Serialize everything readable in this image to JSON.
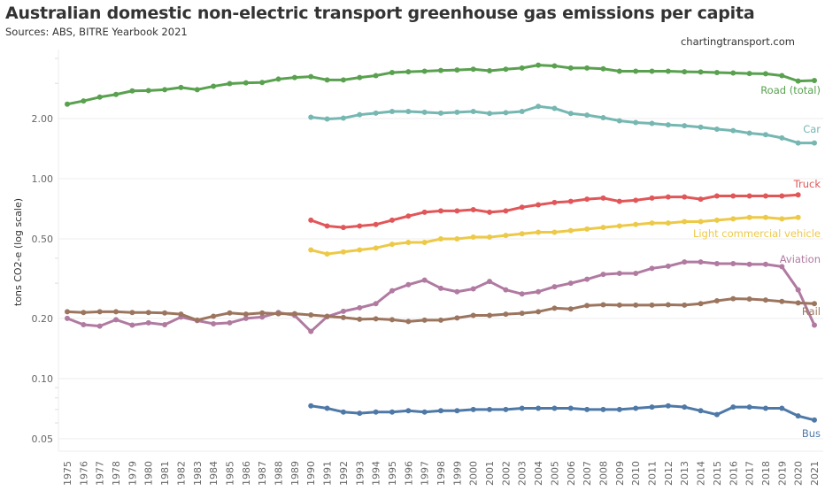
{
  "header": {
    "title": "Australian domestic non-electric transport greenhouse gas emissions per capita",
    "subtitle": "Sources: ABS, BITRE Yearbook 2021",
    "credit": "chartingtransport.com"
  },
  "chart_data": {
    "type": "line",
    "title": "Australian domestic non-electric transport greenhouse gas emissions per capita",
    "subtitle": "Sources: ABS, BITRE Yearbook 2021",
    "xlabel": "",
    "ylabel": "tons CO2-e (log scale)",
    "yscale": "log",
    "ylim": [
      0.045,
      4.5
    ],
    "yticks": [
      0.05,
      0.1,
      0.2,
      0.5,
      1.0,
      2.0
    ],
    "ytick_labels": [
      "0.05",
      "0.10",
      "0.20",
      "0.50",
      "1.00",
      "2.00"
    ],
    "grid": true,
    "legend": "direct labels at right end of each line",
    "x": [
      1975,
      1976,
      1977,
      1978,
      1979,
      1980,
      1981,
      1982,
      1983,
      1984,
      1985,
      1986,
      1987,
      1988,
      1989,
      1990,
      1991,
      1992,
      1993,
      1994,
      1995,
      1996,
      1997,
      1998,
      1999,
      2000,
      2001,
      2002,
      2003,
      2004,
      2005,
      2006,
      2007,
      2008,
      2009,
      2010,
      2011,
      2012,
      2013,
      2014,
      2015,
      2016,
      2017,
      2018,
      2019,
      2020,
      2021
    ],
    "series": [
      {
        "name": "Road (total)",
        "color": "#59a14f",
        "start": 1975,
        "values": [
          2.36,
          2.45,
          2.56,
          2.64,
          2.75,
          2.76,
          2.79,
          2.86,
          2.79,
          2.9,
          2.99,
          3.02,
          3.03,
          3.15,
          3.21,
          3.24,
          3.12,
          3.12,
          3.21,
          3.28,
          3.4,
          3.43,
          3.45,
          3.48,
          3.5,
          3.53,
          3.47,
          3.53,
          3.58,
          3.7,
          3.67,
          3.58,
          3.58,
          3.55,
          3.45,
          3.45,
          3.45,
          3.45,
          3.43,
          3.42,
          3.4,
          3.38,
          3.36,
          3.35,
          3.28,
          3.08,
          3.1
        ]
      },
      {
        "name": "Car",
        "color": "#76b7b2",
        "start": 1990,
        "values": [
          2.03,
          1.99,
          2.01,
          2.09,
          2.13,
          2.17,
          2.17,
          2.15,
          2.13,
          2.15,
          2.17,
          2.12,
          2.14,
          2.17,
          2.3,
          2.25,
          2.12,
          2.08,
          2.02,
          1.95,
          1.91,
          1.89,
          1.86,
          1.84,
          1.81,
          1.77,
          1.74,
          1.69,
          1.66,
          1.6,
          1.51,
          1.51
        ]
      },
      {
        "name": "Truck",
        "color": "#e15759",
        "start": 1990,
        "values": [
          0.62,
          0.58,
          0.57,
          0.58,
          0.59,
          0.62,
          0.65,
          0.68,
          0.69,
          0.69,
          0.7,
          0.68,
          0.69,
          0.72,
          0.74,
          0.76,
          0.77,
          0.79,
          0.8,
          0.77,
          0.78,
          0.8,
          0.81,
          0.81,
          0.79,
          0.82,
          0.82,
          0.82,
          0.82,
          0.82,
          0.83
        ]
      },
      {
        "name": "Light commercial vehicle",
        "color": "#edc948",
        "start": 1990,
        "values": [
          0.44,
          0.42,
          0.43,
          0.44,
          0.45,
          0.47,
          0.48,
          0.48,
          0.5,
          0.5,
          0.51,
          0.51,
          0.52,
          0.53,
          0.54,
          0.54,
          0.55,
          0.56,
          0.57,
          0.58,
          0.59,
          0.6,
          0.6,
          0.61,
          0.61,
          0.62,
          0.63,
          0.64,
          0.64,
          0.63,
          0.64
        ]
      },
      {
        "name": "Aviation",
        "color": "#b07aa1",
        "start": 1975,
        "values": [
          0.2,
          0.186,
          0.183,
          0.197,
          0.185,
          0.19,
          0.186,
          0.203,
          0.195,
          0.188,
          0.19,
          0.2,
          0.203,
          0.214,
          0.207,
          0.172,
          0.204,
          0.217,
          0.226,
          0.237,
          0.275,
          0.295,
          0.311,
          0.283,
          0.272,
          0.281,
          0.306,
          0.278,
          0.265,
          0.272,
          0.288,
          0.3,
          0.314,
          0.332,
          0.336,
          0.336,
          0.356,
          0.365,
          0.383,
          0.383,
          0.376,
          0.376,
          0.373,
          0.373,
          0.363,
          0.278,
          0.185
        ]
      },
      {
        "name": "Rail",
        "color": "#9c755f",
        "start": 1975,
        "values": [
          0.216,
          0.214,
          0.216,
          0.216,
          0.214,
          0.214,
          0.213,
          0.21,
          0.196,
          0.205,
          0.213,
          0.21,
          0.213,
          0.211,
          0.211,
          0.208,
          0.205,
          0.202,
          0.198,
          0.199,
          0.197,
          0.193,
          0.196,
          0.196,
          0.201,
          0.207,
          0.207,
          0.21,
          0.212,
          0.216,
          0.225,
          0.223,
          0.232,
          0.234,
          0.233,
          0.233,
          0.233,
          0.234,
          0.233,
          0.237,
          0.245,
          0.251,
          0.25,
          0.247,
          0.243,
          0.239,
          0.237
        ]
      },
      {
        "name": "Bus",
        "color": "#4e79a7",
        "start": 1990,
        "values": [
          0.073,
          0.071,
          0.068,
          0.067,
          0.068,
          0.068,
          0.069,
          0.068,
          0.069,
          0.069,
          0.07,
          0.07,
          0.07,
          0.071,
          0.071,
          0.071,
          0.071,
          0.07,
          0.07,
          0.07,
          0.071,
          0.072,
          0.073,
          0.072,
          0.069,
          0.066,
          0.072,
          0.072,
          0.071,
          0.071,
          0.065,
          0.062
        ]
      }
    ]
  }
}
